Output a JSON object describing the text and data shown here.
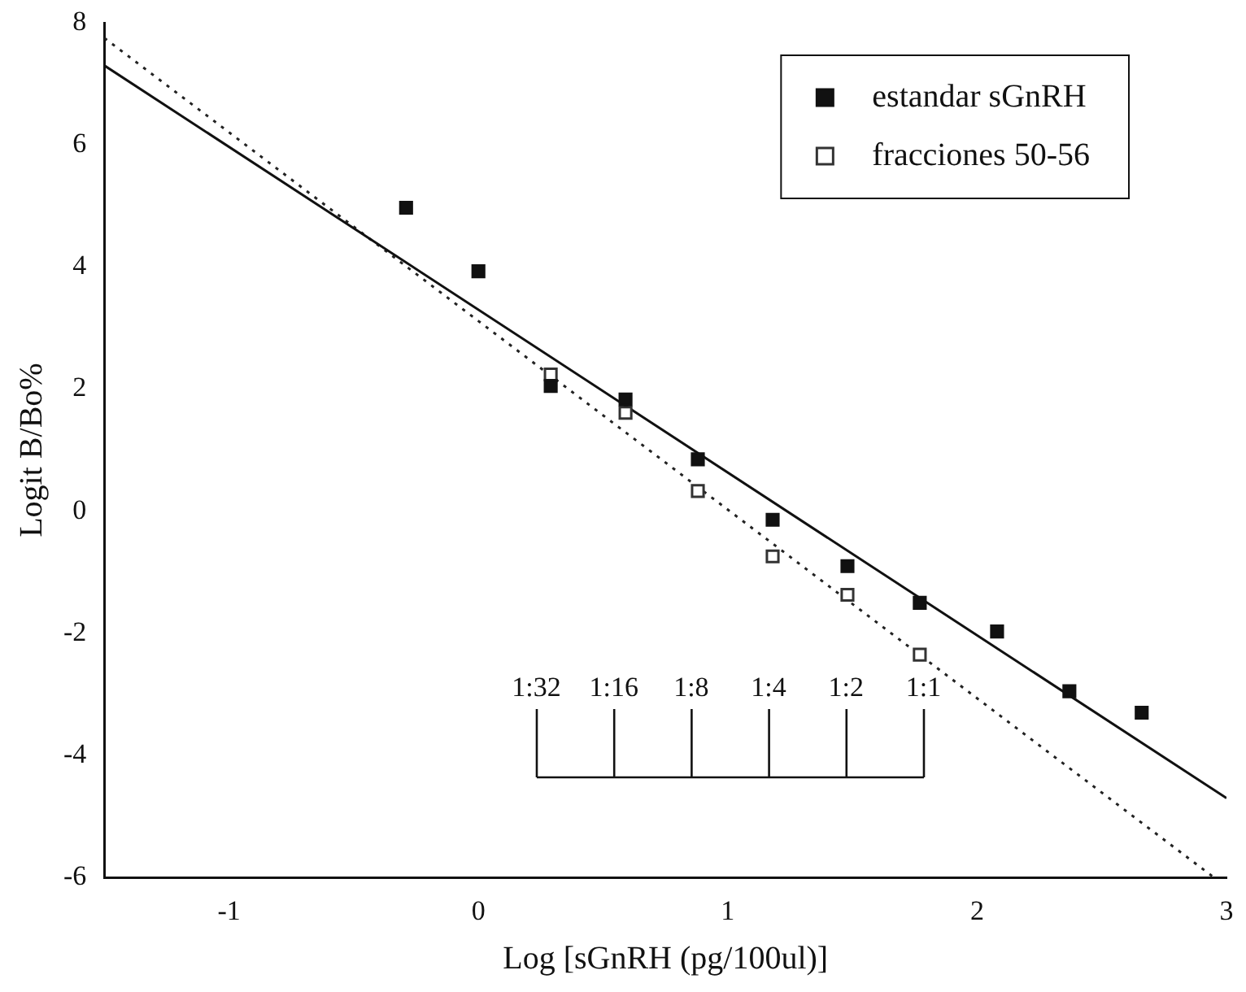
{
  "chart_data": {
    "type": "scatter",
    "xlabel": "Log [sGnRH (pg/100ul)]",
    "ylabel": "Logit B/Bo%",
    "xlim": [
      -1.5,
      3
    ],
    "xticks": [
      -1,
      0,
      1,
      2,
      3
    ],
    "ylim": [
      -6,
      8
    ],
    "yticks": [
      -6,
      -4,
      -2,
      0,
      2,
      4,
      6,
      8
    ],
    "grid": false,
    "legend": "top right",
    "series": [
      {
        "name": "estandar sGnRH",
        "color": "#111111",
        "marker": "square",
        "x": [
          -0.29,
          0,
          0.29,
          0.59,
          0.88,
          1.18,
          1.48,
          1.77,
          2.08,
          2.37,
          2.66
        ],
        "values": [
          4.97,
          3.93,
          2.05,
          1.83,
          0.85,
          -0.14,
          -0.9,
          -1.5,
          -1.97,
          -2.95,
          -3.3
        ]
      },
      {
        "name": "fracciones 50-56",
        "color": "#333333",
        "marker": "square_open",
        "x": [
          0.29,
          0.59,
          0.88,
          1.18,
          1.48,
          1.77
        ],
        "values": [
          2.24,
          1.61,
          0.33,
          -0.74,
          -1.37,
          -2.35
        ]
      },
      {
        "type": "line",
        "color": "#111111",
        "marker": "none",
        "line_style": "solid",
        "x": [
          -1.5,
          3
        ],
        "values": [
          7.3,
          -4.7
        ]
      },
      {
        "type": "line",
        "color": "#222222",
        "marker": "none",
        "line_style": "dotted",
        "x": [
          -1.5,
          2.95
        ],
        "values": [
          7.75,
          -6
        ]
      }
    ],
    "annotations": [
      "1:32",
      "1:16",
      "1:8",
      "1:4",
      "1:2",
      "1:1"
    ]
  }
}
